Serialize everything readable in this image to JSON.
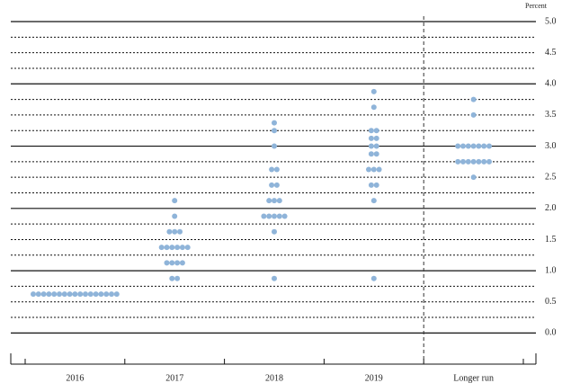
{
  "chart_data": {
    "type": "dot",
    "y_label": "Percent",
    "categories": [
      "2016",
      "2017",
      "2018",
      "2019",
      "Longer run"
    ],
    "values": [
      [
        0.625,
        0.625,
        0.625,
        0.625,
        0.625,
        0.625,
        0.625,
        0.625,
        0.625,
        0.625,
        0.625,
        0.625,
        0.625,
        0.625,
        0.625,
        0.625,
        0.625
      ],
      [
        0.875,
        0.875,
        1.125,
        1.125,
        1.125,
        1.125,
        1.375,
        1.375,
        1.375,
        1.375,
        1.375,
        1.375,
        1.625,
        1.625,
        1.625,
        1.875,
        2.125
      ],
      [
        0.875,
        1.625,
        1.875,
        1.875,
        1.875,
        1.875,
        1.875,
        2.125,
        2.125,
        2.125,
        2.375,
        2.375,
        2.625,
        2.625,
        3.0,
        3.25,
        3.375
      ],
      [
        0.875,
        2.125,
        2.375,
        2.375,
        2.625,
        2.625,
        2.625,
        2.875,
        2.875,
        3.0,
        3.0,
        3.125,
        3.125,
        3.25,
        3.25,
        3.625,
        3.875
      ],
      [
        2.5,
        2.75,
        2.75,
        2.75,
        2.75,
        2.75,
        2.75,
        2.75,
        3.0,
        3.0,
        3.0,
        3.0,
        3.0,
        3.0,
        3.0,
        3.5,
        3.75
      ]
    ],
    "color": "#8fb4d9",
    "ylim": [
      -0.5,
      5.0
    ],
    "yticks": [
      {
        "value": 0,
        "label": "0.0"
      },
      {
        "value": 0.5,
        "label": "0.5"
      },
      {
        "value": 1,
        "label": "1.0"
      },
      {
        "value": 1.5,
        "label": "1.5"
      },
      {
        "value": 2,
        "label": "2.0"
      },
      {
        "value": 2.5,
        "label": "2.5"
      },
      {
        "value": 3,
        "label": "3.0"
      },
      {
        "value": 3.5,
        "label": "3.5"
      },
      {
        "value": 4,
        "label": "4.0"
      },
      {
        "value": 4.5,
        "label": "4.5"
      },
      {
        "value": 5,
        "label": "5.0"
      }
    ],
    "minor_yticks": [
      0.25,
      0.75,
      1.25,
      1.75,
      2.25,
      2.75,
      3.25,
      3.75,
      4.25,
      4.75
    ]
  }
}
